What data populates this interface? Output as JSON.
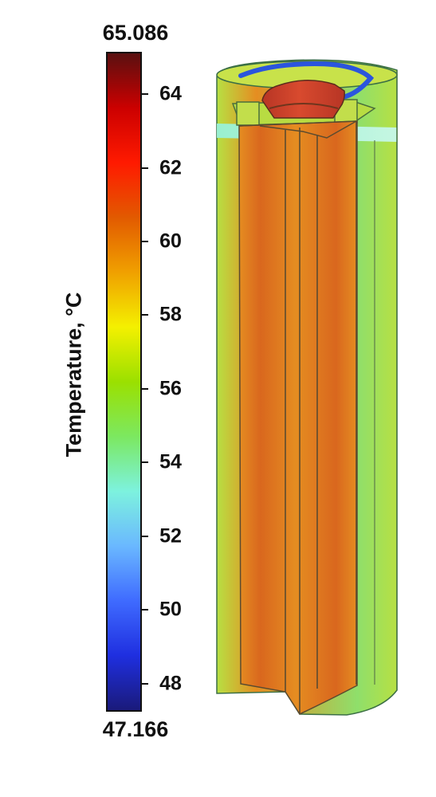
{
  "colorbar": {
    "title": "Temperature, °C",
    "max_label": "65.086",
    "min_label": "47.166",
    "ticks": [
      "64",
      "62",
      "60",
      "58",
      "56",
      "54",
      "52",
      "50",
      "48"
    ],
    "colors": [
      "#5a1010",
      "#cc0000",
      "#ff1a00",
      "#e25a00",
      "#f0a000",
      "#f4f000",
      "#9be000",
      "#7ce860",
      "#7df2de",
      "#6ab8ff",
      "#3f6bff",
      "#1f2fe0",
      "#1a1a7a"
    ]
  },
  "diagram": {
    "colors": {
      "outer_shell": "#8fdf6b",
      "mid_shell": "#b7e043",
      "core_hot": "#d9671e",
      "core_warm": "#e58d21",
      "cap_hot": "#d84a2e",
      "band_cool": "#98f1d6",
      "ring_blue": "#2448d9"
    }
  }
}
